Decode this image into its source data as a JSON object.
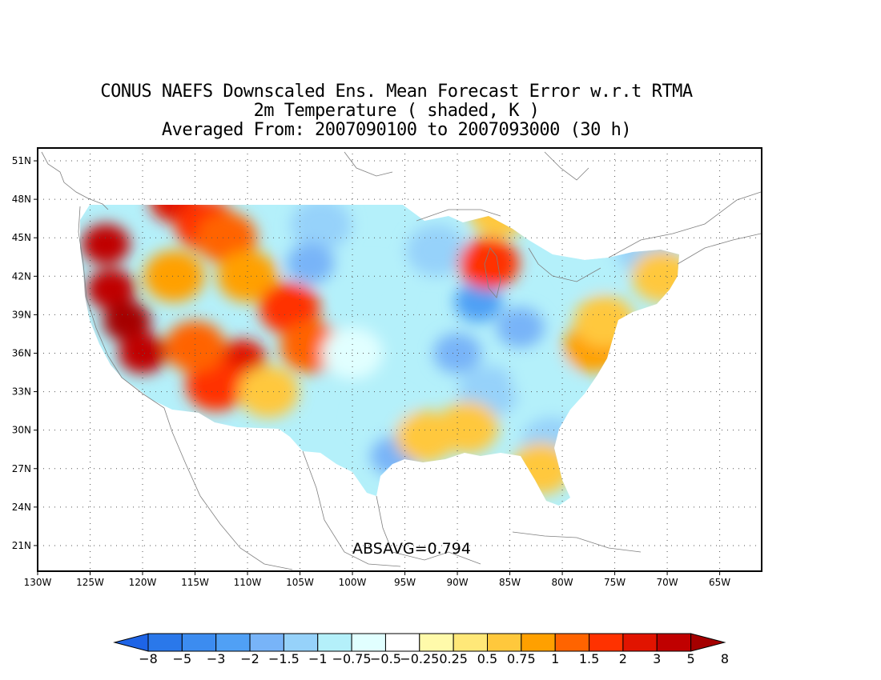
{
  "title_lines": [
    "CONUS NAEFS Downscaled Ens. Mean Forecast Error w.r.t RTMA",
    "2m Temperature ( shaded, K )",
    "Averaged From: 2007090100 to 2007093000 (30 h)"
  ],
  "map": {
    "lon_range": [
      -130,
      -61
    ],
    "lat_range": [
      19,
      52
    ],
    "lat_ticks": [
      {
        "value": 51,
        "label": "51N"
      },
      {
        "value": 48,
        "label": "48N"
      },
      {
        "value": 45,
        "label": "45N"
      },
      {
        "value": 42,
        "label": "42N"
      },
      {
        "value": 39,
        "label": "39N"
      },
      {
        "value": 36,
        "label": "36N"
      },
      {
        "value": 33,
        "label": "33N"
      },
      {
        "value": 30,
        "label": "30N"
      },
      {
        "value": 27,
        "label": "27N"
      },
      {
        "value": 24,
        "label": "24N"
      },
      {
        "value": 21,
        "label": "21N"
      }
    ],
    "lon_ticks": [
      {
        "value": -130,
        "label": "130W"
      },
      {
        "value": -125,
        "label": "125W"
      },
      {
        "value": -120,
        "label": "120W"
      },
      {
        "value": -115,
        "label": "115W"
      },
      {
        "value": -110,
        "label": "110W"
      },
      {
        "value": -105,
        "label": "105W"
      },
      {
        "value": -100,
        "label": "100W"
      },
      {
        "value": -95,
        "label": "95W"
      },
      {
        "value": -90,
        "label": "90W"
      },
      {
        "value": -85,
        "label": "85W"
      },
      {
        "value": -80,
        "label": "80W"
      },
      {
        "value": -75,
        "label": "75W"
      },
      {
        "value": -70,
        "label": "70W"
      },
      {
        "value": -65,
        "label": "65W"
      }
    ],
    "grid": "dotted",
    "absavg": "ABSAVG=0.794"
  },
  "colorbar": {
    "colors": [
      "#1e64e6",
      "#2a78ea",
      "#3c8cf0",
      "#50a0f5",
      "#78b4f8",
      "#96d2fa",
      "#b4f0fa",
      "#e1ffff",
      "#ffffff",
      "#fffaaa",
      "#ffe878",
      "#ffc83c",
      "#ffa000",
      "#ff6400",
      "#ff3200",
      "#e11400",
      "#c00000",
      "#a50000"
    ],
    "labels": [
      "−8",
      "−5",
      "−3",
      "−2",
      "−1.5",
      "−1",
      "−0.75",
      "−0.5",
      "−0.25",
      "0.25",
      "0.5",
      "0.75",
      "1",
      "1.5",
      "2",
      "3",
      "5",
      "8"
    ]
  },
  "regions": [
    {
      "lon": -123.5,
      "lat": 44.5,
      "value": 3
    },
    {
      "lon": -123,
      "lat": 41,
      "value": 3
    },
    {
      "lon": -121.5,
      "lat": 38.5,
      "value": 5
    },
    {
      "lon": -120,
      "lat": 36,
      "value": 3
    },
    {
      "lon": -117,
      "lat": 47.8,
      "value": 2
    },
    {
      "lon": -114,
      "lat": 46,
      "value": 1.5
    },
    {
      "lon": -112,
      "lat": 45,
      "value": 1
    },
    {
      "lon": -117,
      "lat": 42,
      "value": 0.75
    },
    {
      "lon": -110,
      "lat": 42,
      "value": 0.75
    },
    {
      "lon": -106,
      "lat": 39.5,
      "value": 1.5
    },
    {
      "lon": -110.5,
      "lat": 35.5,
      "value": 2
    },
    {
      "lon": -113,
      "lat": 33.5,
      "value": 1.5
    },
    {
      "lon": -115,
      "lat": 36.5,
      "value": 1
    },
    {
      "lon": -104,
      "lat": 36.5,
      "value": 1
    },
    {
      "lon": -108,
      "lat": 33,
      "value": 0.5
    },
    {
      "lon": -103,
      "lat": 46,
      "value": -1.5
    },
    {
      "lon": -104,
      "lat": 43,
      "value": -2
    },
    {
      "lon": -98,
      "lat": 41,
      "value": -1
    },
    {
      "lon": -100,
      "lat": 36,
      "value": -0.75
    },
    {
      "lon": -97,
      "lat": 31,
      "value": -1
    },
    {
      "lon": -96,
      "lat": 28,
      "value": -2
    },
    {
      "lon": -92,
      "lat": 44,
      "value": -1.5
    },
    {
      "lon": -88,
      "lat": 40,
      "value": -3
    },
    {
      "lon": -90,
      "lat": 36,
      "value": -2
    },
    {
      "lon": -87,
      "lat": 33,
      "value": -1.5
    },
    {
      "lon": -84,
      "lat": 38,
      "value": -2
    },
    {
      "lon": -82,
      "lat": 34,
      "value": -1
    },
    {
      "lon": -81,
      "lat": 29,
      "value": -1.5
    },
    {
      "lon": -77,
      "lat": 43,
      "value": -1
    },
    {
      "lon": -72,
      "lat": 44,
      "value": -1.5
    },
    {
      "lon": -87,
      "lat": 43,
      "value": 1.5
    },
    {
      "lon": -77,
      "lat": 36.5,
      "value": 0.75
    },
    {
      "lon": -76,
      "lat": 38.5,
      "value": 0.5
    },
    {
      "lon": -70.5,
      "lat": 42,
      "value": 0.5
    },
    {
      "lon": -82,
      "lat": 27,
      "value": 0.5
    },
    {
      "lon": -89,
      "lat": 30.2,
      "value": 0.5
    },
    {
      "lon": -93,
      "lat": 29.5,
      "value": 0.5
    },
    {
      "lon": -86,
      "lat": 47,
      "value": 0.5
    }
  ]
}
